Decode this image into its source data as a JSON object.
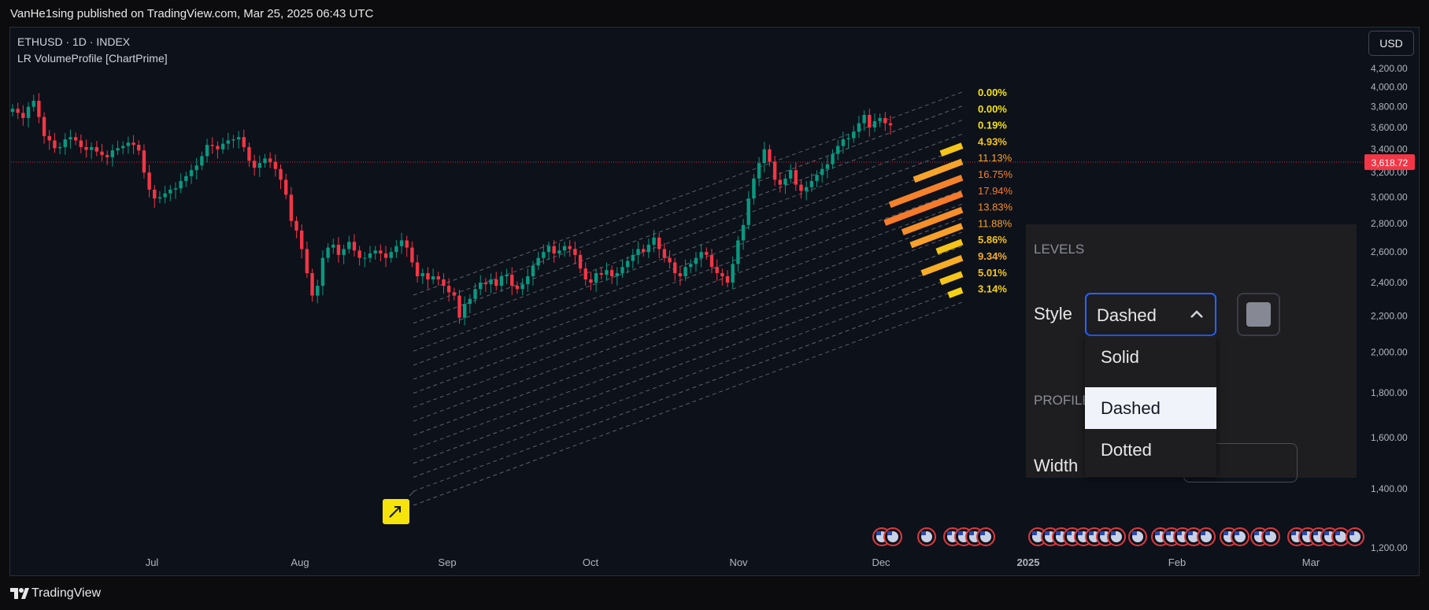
{
  "header": {
    "published": "VanHe1sing published on TradingView.com, Mar 25, 2025 06:43 UTC",
    "symbol_line": "ETHUSD · 1D · INDEX",
    "indicator_line": "LR VolumeProfile [ChartPrime]",
    "currency_button": "USD"
  },
  "footer": {
    "brand": "TradingView"
  },
  "chart_data": {
    "type": "candlestick",
    "symbol": "ETHUSD",
    "interval": "1D",
    "exchange": "INDEX",
    "indicator": "LR VolumeProfile [ChartPrime]",
    "y_axis": {
      "ticks": [
        "4,200.00",
        "4,000.00",
        "3,800.00",
        "3,600.00",
        "3,400.00",
        "3,200.00",
        "3,000.00",
        "2,800.00",
        "2,600.00",
        "2,400.00",
        "2,200.00",
        "2,000.00",
        "1,800.00",
        "1,600.00",
        "1,400.00",
        "1,200.00"
      ],
      "ylim": [
        1200,
        4200
      ],
      "scale": "log"
    },
    "x_axis": {
      "ticks": [
        "Jul",
        "Aug",
        "Sep",
        "Oct",
        "Nov",
        "Dec",
        "2025",
        "Feb",
        "Mar"
      ],
      "bold_ticks": [
        "2025"
      ]
    },
    "last_price": {
      "label": "3,618.72",
      "value": 3618.72,
      "color": "#f23645"
    },
    "colors": {
      "up": "#089981",
      "down": "#f23645",
      "background": "#0d111a",
      "channel": "#5d606b"
    },
    "closes": [
      3780,
      3740,
      3690,
      3800,
      3860,
      3700,
      3520,
      3480,
      3410,
      3420,
      3490,
      3510,
      3480,
      3420,
      3395,
      3420,
      3380,
      3350,
      3330,
      3390,
      3410,
      3430,
      3460,
      3440,
      3390,
      3200,
      3060,
      2990,
      3000,
      3030,
      3060,
      3070,
      3130,
      3170,
      3220,
      3260,
      3340,
      3440,
      3430,
      3400,
      3450,
      3480,
      3490,
      3510,
      3420,
      3300,
      3240,
      3280,
      3320,
      3290,
      3230,
      3140,
      3020,
      2820,
      2750,
      2620,
      2460,
      2320,
      2380,
      2560,
      2630,
      2650,
      2580,
      2620,
      2670,
      2610,
      2560,
      2560,
      2590,
      2610,
      2590,
      2560,
      2600,
      2640,
      2680,
      2630,
      2530,
      2440,
      2460,
      2420,
      2440,
      2420,
      2380,
      2340,
      2320,
      2190,
      2270,
      2300,
      2360,
      2400,
      2390,
      2420,
      2380,
      2440,
      2450,
      2380,
      2360,
      2390,
      2440,
      2510,
      2560,
      2600,
      2640,
      2590,
      2610,
      2640,
      2620,
      2580,
      2490,
      2420,
      2400,
      2460,
      2450,
      2480,
      2440,
      2460,
      2500,
      2540,
      2580,
      2620,
      2600,
      2650,
      2700,
      2620,
      2560,
      2530,
      2460,
      2440,
      2500,
      2520,
      2560,
      2600,
      2580,
      2500,
      2460,
      2440,
      2400,
      2520,
      2680,
      2790,
      2990,
      3150,
      3280,
      3400,
      3290,
      3140,
      3100,
      3150,
      3220,
      3100,
      3050,
      3080,
      3130,
      3180,
      3230,
      3270,
      3360,
      3430,
      3490,
      3500,
      3560,
      3640,
      3720,
      3600,
      3660,
      3690,
      3640,
      3620
    ],
    "regression_channel": {
      "lines": 16,
      "style": "dashed"
    },
    "volume_profile": [
      {
        "label": "0.00%",
        "pct": 0.0,
        "color": "#f5e30c"
      },
      {
        "label": "0.00%",
        "pct": 0.0,
        "color": "#f5e30c"
      },
      {
        "label": "0.19%",
        "pct": 0.19,
        "color": "#f5e30c"
      },
      {
        "label": "4.93%",
        "pct": 4.93,
        "color": "#f5c518"
      },
      {
        "label": "11.13%",
        "pct": 11.13,
        "color": "#f7a42a"
      },
      {
        "label": "16.75%",
        "pct": 16.75,
        "color": "#f5822a"
      },
      {
        "label": "17.94%",
        "pct": 17.94,
        "color": "#f57a2a"
      },
      {
        "label": "13.83%",
        "pct": 13.83,
        "color": "#f58f2a"
      },
      {
        "label": "11.88%",
        "pct": 11.88,
        "color": "#f7a02a"
      },
      {
        "label": "5.86%",
        "pct": 5.86,
        "color": "#f5c418"
      },
      {
        "label": "9.34%",
        "pct": 9.34,
        "color": "#f7ad26"
      },
      {
        "label": "5.01%",
        "pct": 5.01,
        "color": "#f5c618"
      },
      {
        "label": "3.14%",
        "pct": 3.14,
        "color": "#f5d214"
      }
    ]
  },
  "settings_panel": {
    "levels_heading": "LEVELS",
    "style_label": "Style",
    "style_value": "Dashed",
    "profile_heading": "PROFILE",
    "width_label": "Width",
    "color_swatch": "#868993",
    "options": [
      "Solid",
      "Dashed",
      "Dotted"
    ],
    "selected_option": "Dashed"
  },
  "icons": {
    "flag": "us-flag-icon",
    "marker": "arrow-marker-icon",
    "chevron": "chevron-up-icon",
    "logo": "tradingview-logo-icon"
  }
}
